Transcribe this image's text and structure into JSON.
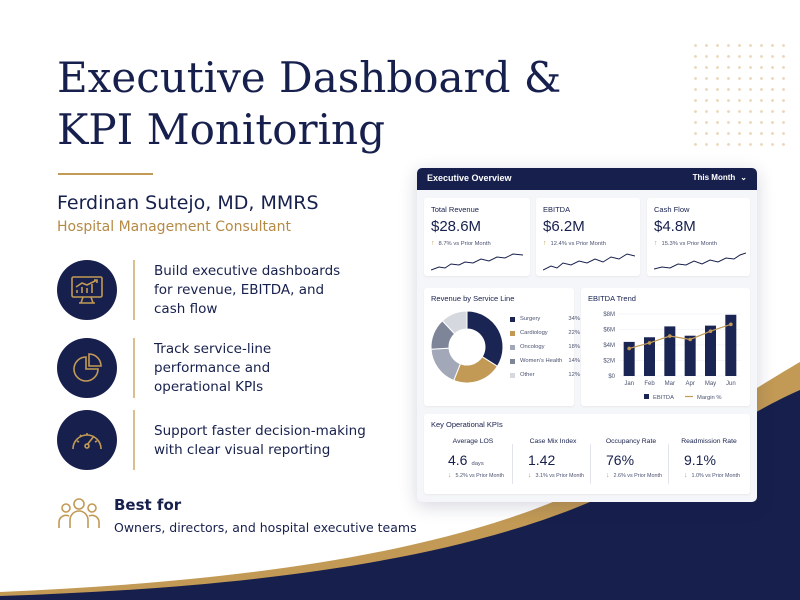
{
  "hero": {
    "title_line1": "Executive Dashboard &",
    "title_line2": "KPI Monitoring",
    "author": "Ferdinan Sutejo, MD, MMRS",
    "role": "Hospital Management Consultant"
  },
  "features": [
    {
      "icon": "monitor-chart-icon",
      "lines": [
        "Build executive dashboards",
        "for revenue, EBITDA, and",
        "cash flow"
      ]
    },
    {
      "icon": "pie-chart-icon",
      "lines": [
        "Track service-line",
        "performance and",
        "operational KPIs"
      ]
    },
    {
      "icon": "gauge-icon",
      "lines": [
        "Support faster decision-making",
        "with clear visual reporting"
      ]
    }
  ],
  "best_for": {
    "icon": "people-group-icon",
    "title": "Best for",
    "description": "Owners, directors, and hospital executive teams"
  },
  "dashboard": {
    "title": "Executive Overview",
    "filter": "This Month",
    "kpis": [
      {
        "label": "Total Revenue",
        "value": "$28.6M",
        "delta": "8.7% vs Prior Month"
      },
      {
        "label": "EBITDA",
        "value": "$6.2M",
        "delta": "12.4% vs Prior Month"
      },
      {
        "label": "Cash Flow",
        "value": "$4.8M",
        "delta": "15.3% vs Prior Month"
      }
    ],
    "service_line": {
      "title": "Revenue by Service Line",
      "items": [
        {
          "name": "Surgery",
          "pct": "34%",
          "value": 34,
          "color": "#1b2554"
        },
        {
          "name": "Cardiology",
          "pct": "22%",
          "value": 22,
          "color": "#c29a55"
        },
        {
          "name": "Oncology",
          "pct": "18%",
          "value": 18,
          "color": "#a3a8b8"
        },
        {
          "name": "Women's Health",
          "pct": "14%",
          "value": 14,
          "color": "#7f8598"
        },
        {
          "name": "Other",
          "pct": "12%",
          "value": 12,
          "color": "#d6d8e0"
        }
      ]
    },
    "ebitda_trend": {
      "title": "EBITDA Trend",
      "months": [
        "Jan",
        "Feb",
        "Mar",
        "Apr",
        "May",
        "Jun"
      ],
      "ebitda": [
        4.4,
        5.0,
        6.4,
        5.2,
        6.5,
        7.9
      ],
      "margin": [
        12,
        12.8,
        13.8,
        13.3,
        14.5,
        15.5
      ],
      "y_ticks": [
        "$8M",
        "$6M",
        "$4M",
        "$2M",
        "$0"
      ],
      "legend_bar": "EBITDA",
      "legend_line": "Margin %",
      "bar_color": "#1b2554",
      "line_color": "#c29a55"
    },
    "operational": {
      "title": "Key Operational KPIs",
      "items": [
        {
          "label": "Average LOS",
          "value": "4.6",
          "unit": "days",
          "delta": "5.2% vs Prior Month"
        },
        {
          "label": "Case Mix Index",
          "value": "1.42",
          "unit": "",
          "delta": "3.1% vs Prior Month"
        },
        {
          "label": "Occupancy Rate",
          "value": "76%",
          "unit": "",
          "delta": "2.6% vs Prior Month"
        },
        {
          "label": "Readmission Rate",
          "value": "9.1%",
          "unit": "",
          "delta": "1.0% vs Prior Month"
        }
      ]
    }
  },
  "colors": {
    "navy": "#17204d",
    "gold": "#c29a55"
  }
}
